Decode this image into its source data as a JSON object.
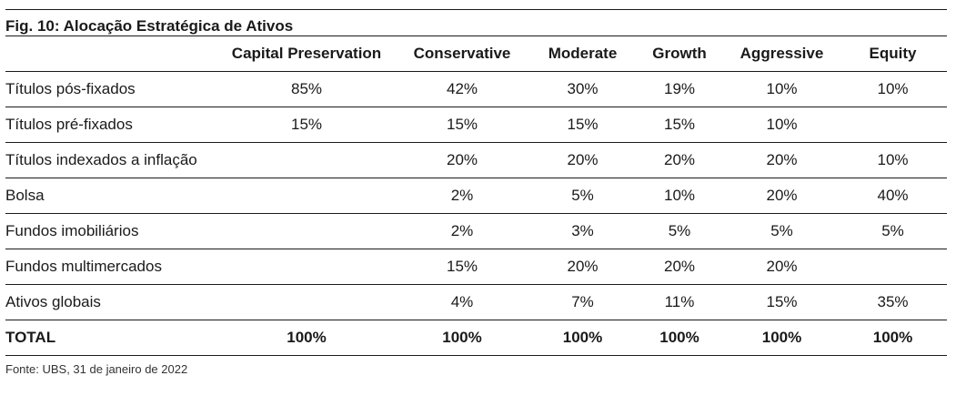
{
  "title": "Fig. 10: Alocação Estratégica de Ativos",
  "columns": [
    "",
    "Capital Preservation",
    "Conservative",
    "Moderate",
    "Growth",
    "Aggressive",
    "Equity"
  ],
  "rows": [
    {
      "label": "Títulos pós-fixados",
      "values": [
        "85%",
        "42%",
        "30%",
        "19%",
        "10%",
        "10%"
      ]
    },
    {
      "label": "Títulos pré-fixados",
      "values": [
        "15%",
        "15%",
        "15%",
        "15%",
        "10%",
        ""
      ]
    },
    {
      "label": "Títulos indexados a inflação",
      "values": [
        "",
        "20%",
        "20%",
        "20%",
        "20%",
        "10%"
      ]
    },
    {
      "label": "Bolsa",
      "values": [
        "",
        "2%",
        "5%",
        "10%",
        "20%",
        "40%"
      ]
    },
    {
      "label": "Fundos imobiliários",
      "values": [
        "",
        "2%",
        "3%",
        "5%",
        "5%",
        "5%"
      ]
    },
    {
      "label": "Fundos multimercados",
      "values": [
        "",
        "15%",
        "20%",
        "20%",
        "20%",
        ""
      ]
    },
    {
      "label": "Ativos globais",
      "values": [
        "",
        "4%",
        "7%",
        "11%",
        "15%",
        "35%"
      ]
    }
  ],
  "total": {
    "label": "TOTAL",
    "values": [
      "100%",
      "100%",
      "100%",
      "100%",
      "100%",
      "100%"
    ]
  },
  "source": "Fonte: UBS, 31 de janeiro de 2022"
}
